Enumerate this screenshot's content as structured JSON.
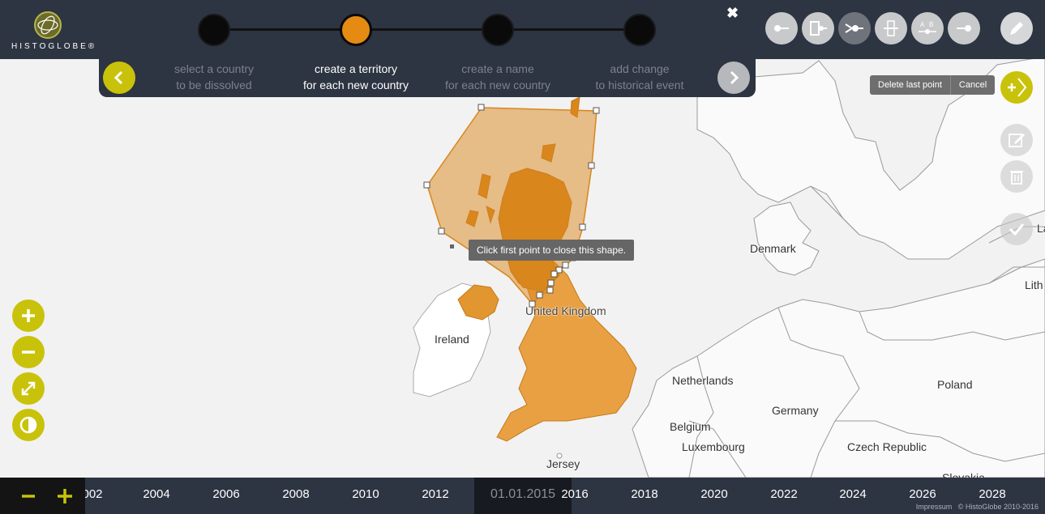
{
  "logo": {
    "text": "HISTOGLOBE®"
  },
  "wizard": {
    "steps": [
      {
        "line1": "select a country",
        "line2": "to be dissolved"
      },
      {
        "line1": "create a territory",
        "line2": "for each new country"
      },
      {
        "line1": "create a name",
        "line2": "for each new country"
      },
      {
        "line1": "add change",
        "line2": "to historical event"
      }
    ],
    "active_step": 2
  },
  "actions": {
    "delete_last_point": "Delete last point",
    "cancel": "Cancel"
  },
  "tooltip": "Click first point to close this shape.",
  "map_labels": {
    "denmark": "Denmark",
    "united_kingdom": "United Kingdom",
    "ireland": "Ireland",
    "netherlands": "Netherlands",
    "poland": "Poland",
    "germany": "Germany",
    "belgium": "Belgium",
    "luxembourg": "Luxembourg",
    "czech_republic": "Czech Republic",
    "jersey": "Jersey",
    "slovakia": "Slovakia",
    "latvia": "La",
    "lithuania": "Lith"
  },
  "timeline": {
    "years": [
      "002",
      "2004",
      "2006",
      "2008",
      "2010",
      "2012",
      "2016",
      "2018",
      "2020",
      "2022",
      "2024",
      "2026",
      "2028"
    ],
    "current_date": "01.01.2015",
    "footer_impressum": "Impressum",
    "footer_copyright": "© HistoGlobe 2010-2016"
  },
  "colors": {
    "accent_yellow": "#c9c20a",
    "header_bg": "#2d3442",
    "territory": "#e2962f",
    "active_step": "#e58a12"
  },
  "icons": [
    "close-icon",
    "chevron-left-icon",
    "chevron-right-icon",
    "pencil-icon",
    "plus-chevron-icon",
    "edit-icon",
    "trash-icon",
    "check-icon",
    "zoom-in-icon",
    "zoom-out-icon",
    "fullscreen-icon",
    "contrast-icon"
  ]
}
